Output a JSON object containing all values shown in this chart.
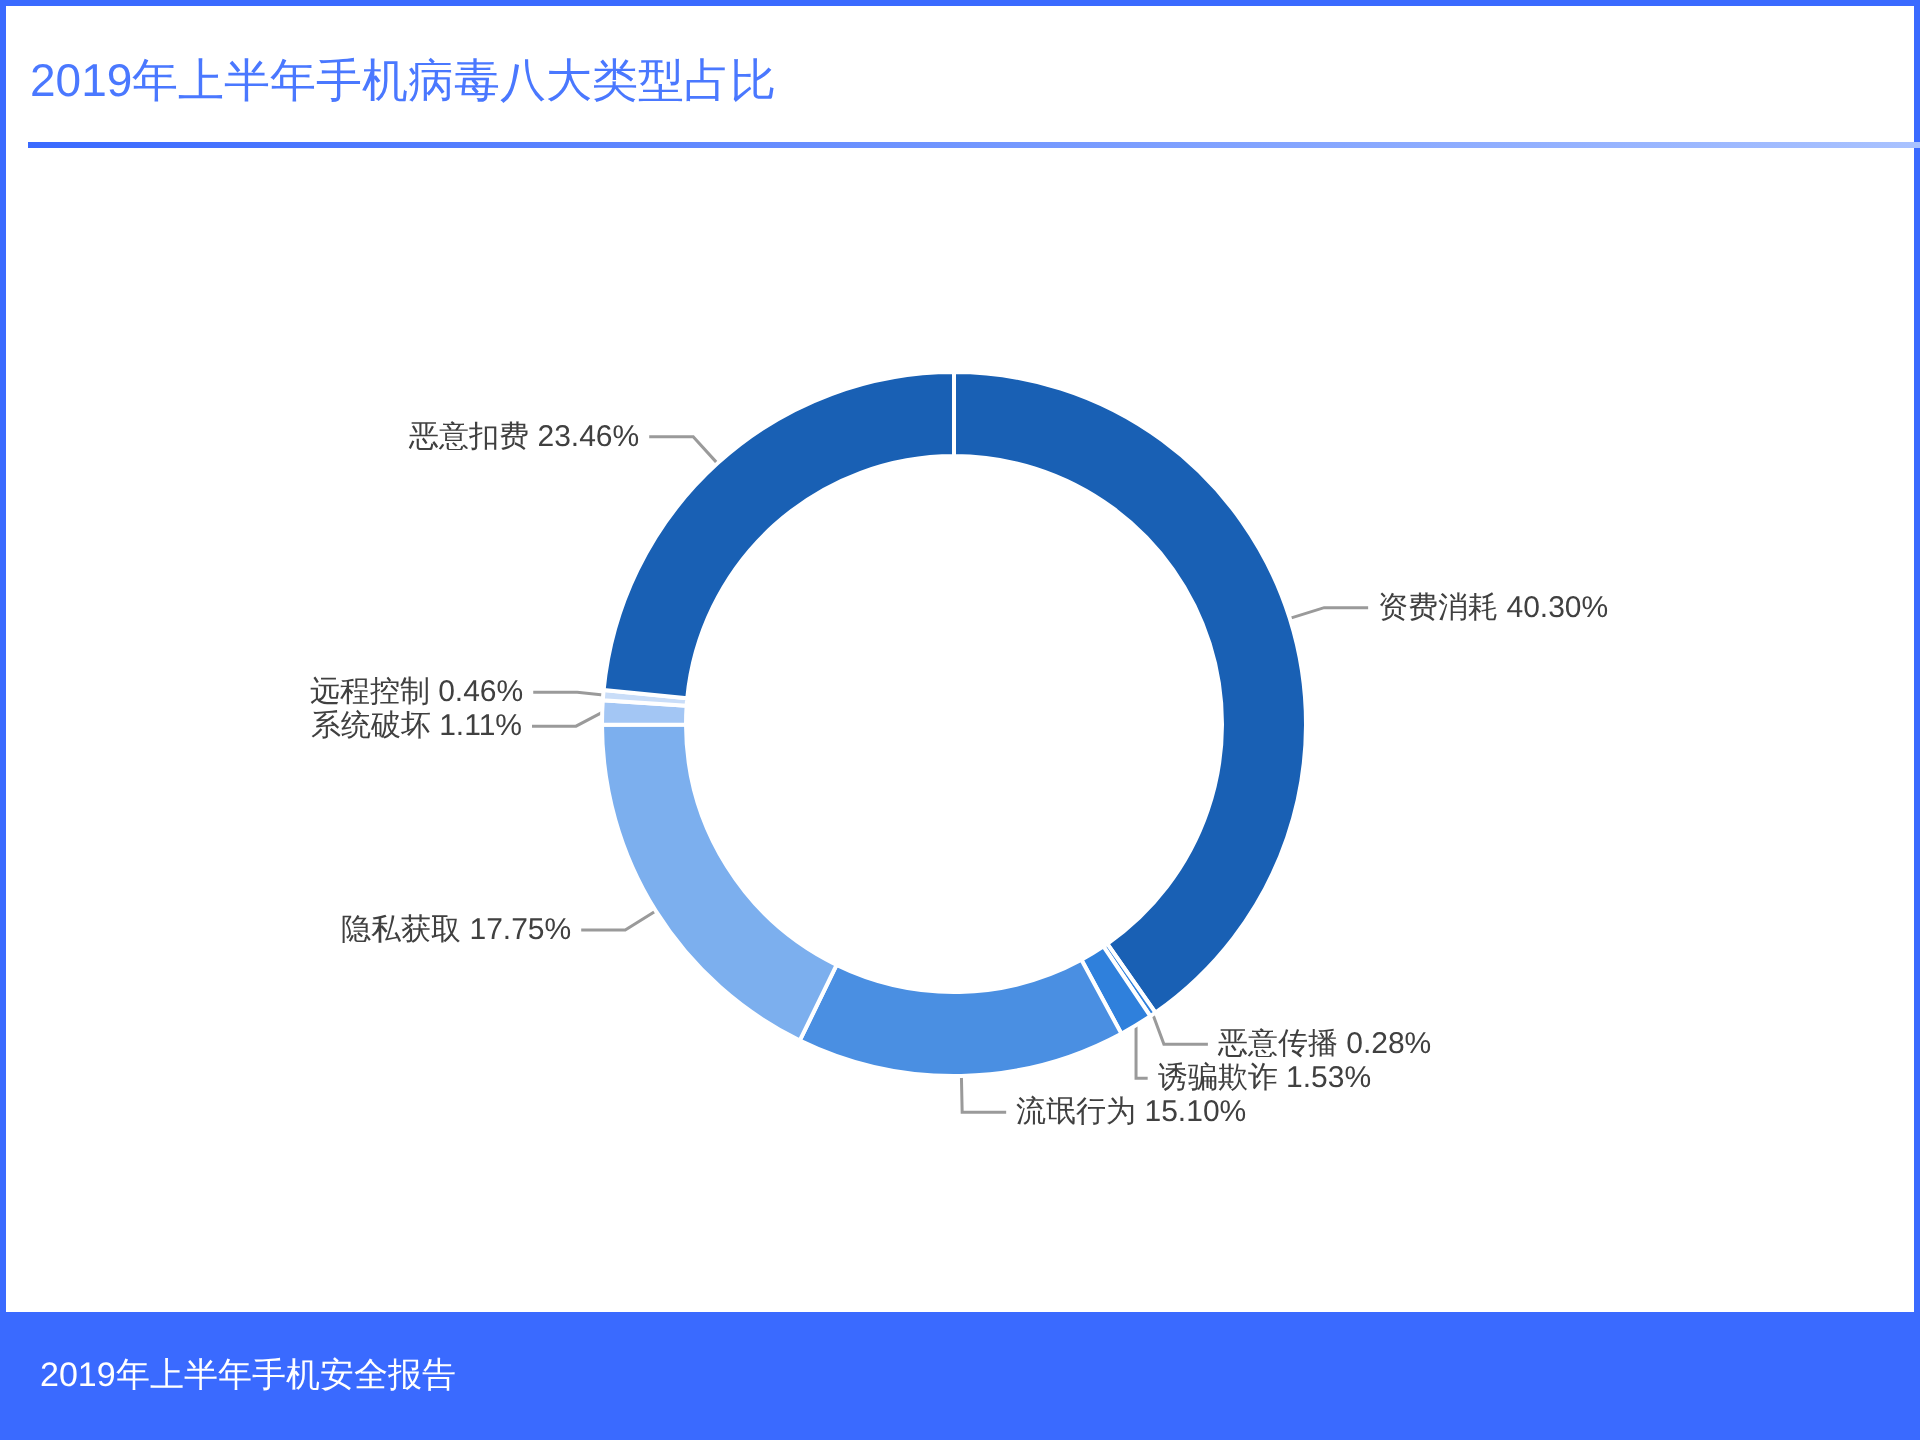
{
  "chart_data": {
    "type": "donut",
    "title": "2019年上半年手机病毒八大类型占比",
    "categories": [
      "资费消耗",
      "恶意传播",
      "诱骗欺诈",
      "流氓行为",
      "隐私获取",
      "系统破坏",
      "远程控制",
      "恶意扣费"
    ],
    "values": [
      40.3,
      0.28,
      1.53,
      15.1,
      17.75,
      1.11,
      0.46,
      23.46
    ],
    "colors": [
      "#1960b4",
      "#2f80dc",
      "#2f80dc",
      "#4a8fe2",
      "#7cafee",
      "#a3c6f4",
      "#c9ddf8",
      "#1960b4"
    ],
    "value_labels": [
      "40.30%",
      "0.28%",
      "1.53%",
      "15.10%",
      "17.75%",
      "1.11%",
      "0.46%",
      "23.46%"
    ],
    "annotations": [
      "2019年上半年手机安全报告"
    ]
  }
}
